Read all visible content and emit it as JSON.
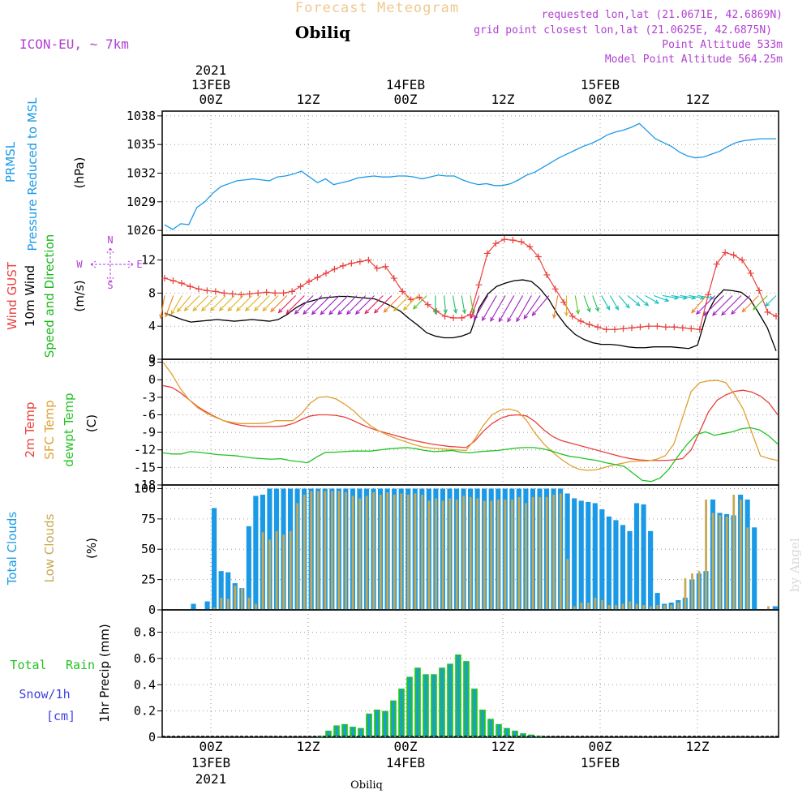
{
  "header": {
    "title": "Forecast Meteogram",
    "location": "Obiliq",
    "model": "ICON-EU, ~ 7km",
    "requested": "requested lon,lat (21.0671E, 42.6869N)",
    "gridpoint": "grid point closest lon,lat (21.0625E, 42.6875N)",
    "point_altitude": "Point Altitude 533m",
    "model_altitude": "Model Point Altitude 564.25m",
    "credit": "by Angel",
    "footer_location": "Obiliq"
  },
  "colors": {
    "pressure": "#1a9ae6",
    "gust": "#e8413c",
    "wind": "#000000",
    "windlabel": "#19b919",
    "temp2m": "#e8413c",
    "sfc": "#e0a030",
    "dewpt": "#22c322",
    "total_clouds": "#1a9ae6",
    "low_clouds": "#c8a850",
    "rain": "#22c322",
    "snow": "#4040e0",
    "header_purple": "#b040d0",
    "header_orange": "#f0c890"
  },
  "time_axis": {
    "top_ticks": [
      {
        "t": 6,
        "line1": "2021",
        "line2": "13FEB",
        "line3": "00Z"
      },
      {
        "t": 18,
        "line1": "",
        "line2": "",
        "line3": "12Z"
      },
      {
        "t": 30,
        "line1": "",
        "line2": "14FEB",
        "line3": "00Z"
      },
      {
        "t": 42,
        "line1": "",
        "line2": "",
        "line3": "12Z"
      },
      {
        "t": 54,
        "line1": "",
        "line2": "15FEB",
        "line3": "00Z"
      },
      {
        "t": 66,
        "line1": "",
        "line2": "",
        "line3": "12Z"
      }
    ],
    "bottom_ticks": [
      {
        "t": 6,
        "line1": "00Z",
        "line2": "13FEB",
        "line3": "2021"
      },
      {
        "t": 18,
        "line1": "12Z",
        "line2": "",
        "line3": ""
      },
      {
        "t": 30,
        "line1": "00Z",
        "line2": "14FEB",
        "line3": ""
      },
      {
        "t": 42,
        "line1": "12Z",
        "line2": "",
        "line3": ""
      },
      {
        "t": 54,
        "line1": "00Z",
        "line2": "15FEB",
        "line3": ""
      },
      {
        "t": 66,
        "line1": "12Z",
        "line2": "",
        "line3": ""
      }
    ]
  },
  "chart_data": [
    {
      "type": "line",
      "title": "PRMSL Pressure Reduced to MSL",
      "ylabel": "(hPa)",
      "label_lines": [
        "PRMSL",
        "Pressure Reduced to MSL"
      ],
      "yticks": [
        1026,
        1029,
        1032,
        1035,
        1038
      ],
      "ylim": [
        1025.5,
        1038.5
      ],
      "x_hours": [
        0,
        1,
        2,
        3,
        4,
        5,
        6,
        7,
        8,
        9,
        10,
        11,
        12,
        13,
        14,
        15,
        16,
        17,
        18,
        19,
        20,
        21,
        22,
        23,
        24,
        25,
        26,
        27,
        28,
        29,
        30,
        31,
        32,
        33,
        34,
        35,
        36,
        37,
        38,
        39,
        40,
        41,
        42,
        43,
        44,
        45,
        46,
        47,
        48,
        49,
        50,
        51,
        52,
        53,
        54,
        55,
        56,
        57,
        58,
        59,
        60,
        61,
        62,
        63,
        64,
        65,
        66,
        67,
        68,
        69,
        70,
        71,
        72,
        73,
        74,
        75,
        76
      ],
      "series": [
        {
          "name": "PRMSL",
          "values": [
            1026.6,
            1026.1,
            1026.7,
            1026.6,
            1028.4,
            1029.0,
            1029.9,
            1030.6,
            1030.9,
            1031.2,
            1031.3,
            1031.4,
            1031.3,
            1031.2,
            1031.6,
            1031.7,
            1031.9,
            1032.2,
            1031.6,
            1031.0,
            1031.4,
            1030.8,
            1031.0,
            1031.2,
            1031.5,
            1031.6,
            1031.7,
            1031.6,
            1031.6,
            1031.7,
            1031.7,
            1031.6,
            1031.4,
            1031.6,
            1031.8,
            1031.7,
            1031.7,
            1031.3,
            1031.0,
            1030.8,
            1030.9,
            1030.7,
            1030.7,
            1030.9,
            1031.3,
            1031.8,
            1032.1,
            1032.6,
            1033.1,
            1033.6,
            1034.0,
            1034.4,
            1034.8,
            1035.1,
            1035.5,
            1036.0,
            1036.3,
            1036.5,
            1036.8,
            1037.2,
            1036.4,
            1035.6,
            1035.2,
            1034.8,
            1034.2,
            1033.8,
            1033.6,
            1033.7,
            1034.0,
            1034.3,
            1034.8,
            1035.2,
            1035.4,
            1035.5,
            1035.6,
            1035.6,
            1035.6
          ]
        }
      ]
    },
    {
      "type": "line",
      "title": "Wind GUST / 10m Wind Speed and Direction",
      "ylabel": "(m/s)",
      "label_lines": [
        "Wind GUST",
        "10m Wind",
        "Speed and Direction"
      ],
      "compass": {
        "n": "N",
        "s": "S",
        "w": "W",
        "e": "E"
      },
      "yticks": [
        0,
        4,
        8,
        12
      ],
      "ylim": [
        0,
        15
      ],
      "series": [
        {
          "name": "Wind GUST",
          "values": [
            9.8,
            9.5,
            9.2,
            8.8,
            8.5,
            8.3,
            8.2,
            8.0,
            7.9,
            7.8,
            7.9,
            8.0,
            8.1,
            8.0,
            8.0,
            8.2,
            8.8,
            9.4,
            9.9,
            10.4,
            10.9,
            11.3,
            11.6,
            11.8,
            12.0,
            11.0,
            11.2,
            9.8,
            8.2,
            7.2,
            7.5,
            6.6,
            5.8,
            5.2,
            5.0,
            5.0,
            5.4,
            9.0,
            12.8,
            14.0,
            14.5,
            14.4,
            14.2,
            13.6,
            12.4,
            10.2,
            8.5,
            6.9,
            5.2,
            4.6,
            4.2,
            3.9,
            3.6,
            3.6,
            3.7,
            3.8,
            3.9,
            4.0,
            4.0,
            3.9,
            3.9,
            3.8,
            3.7,
            3.6,
            7.8,
            11.5,
            12.9,
            12.6,
            12.0,
            10.4,
            8.3,
            5.7,
            5.2
          ]
        },
        {
          "name": "10m Wind",
          "values": [
            5.6,
            5.2,
            4.8,
            4.5,
            4.6,
            4.7,
            4.8,
            4.7,
            4.6,
            4.7,
            4.8,
            4.7,
            4.6,
            4.8,
            5.4,
            6.2,
            6.8,
            7.1,
            7.4,
            7.5,
            7.6,
            7.6,
            7.5,
            7.4,
            7.3,
            6.9,
            6.4,
            5.8,
            4.9,
            4.1,
            3.2,
            2.8,
            2.6,
            2.6,
            2.8,
            3.2,
            6.2,
            7.9,
            8.8,
            9.2,
            9.5,
            9.6,
            9.4,
            8.5,
            7.2,
            5.4,
            4.0,
            3.0,
            2.4,
            2.0,
            1.8,
            1.8,
            1.7,
            1.5,
            1.4,
            1.4,
            1.5,
            1.5,
            1.5,
            1.4,
            1.3,
            1.7,
            5.3,
            7.3,
            8.4,
            8.3,
            8.1,
            7.3,
            5.6,
            3.8,
            1.0
          ]
        },
        {
          "name": "Direction (deg from)",
          "values": [
            10,
            20,
            30,
            40,
            45,
            45,
            45,
            45,
            45,
            45,
            45,
            45,
            45,
            45,
            45,
            45,
            45,
            45,
            45,
            45,
            45,
            45,
            45,
            45,
            45,
            45,
            45,
            45,
            45,
            45,
            45,
            0,
            355,
            350,
            350,
            350,
            20,
            30,
            30,
            30,
            30,
            30,
            30,
            35,
            40,
            10,
            0,
            350,
            340,
            340,
            330,
            330,
            320,
            310,
            310,
            300,
            290,
            280,
            280,
            280,
            280,
            280,
            40,
            45,
            45,
            45,
            45,
            45,
            45,
            45,
            45
          ]
        }
      ]
    },
    {
      "type": "line",
      "title": "2m Temp / SFC Temp / dewpt Temp",
      "ylabel": "(C)",
      "label_lines": [
        "2m Temp",
        "SFC Temp",
        "dewpt Temp"
      ],
      "yticks": [
        -18,
        -15,
        -12,
        -9,
        -6,
        -3,
        0,
        3
      ],
      "ylim": [
        -18,
        3.5
      ],
      "series": [
        {
          "name": "2m Temp",
          "values": [
            -1.0,
            -1.3,
            -2.2,
            -3.4,
            -4.6,
            -5.5,
            -6.3,
            -7.0,
            -7.5,
            -7.8,
            -8.0,
            -8.0,
            -8.0,
            -8.0,
            -7.9,
            -7.5,
            -6.8,
            -6.2,
            -6.0,
            -6.0,
            -6.1,
            -6.4,
            -7.0,
            -7.7,
            -8.3,
            -8.8,
            -9.2,
            -9.6,
            -10.0,
            -10.4,
            -10.7,
            -11.0,
            -11.2,
            -11.4,
            -11.5,
            -11.6,
            -10.5,
            -8.8,
            -7.5,
            -6.6,
            -6.1,
            -6.0,
            -6.2,
            -7.2,
            -8.6,
            -9.7,
            -10.4,
            -10.8,
            -11.2,
            -11.6,
            -12.0,
            -12.4,
            -12.8,
            -13.2,
            -13.5,
            -13.7,
            -13.8,
            -13.8,
            -13.8,
            -13.7,
            -13.5,
            -12.0,
            -8.8,
            -5.5,
            -3.5,
            -2.6,
            -2.0,
            -1.8,
            -2.1,
            -2.8,
            -4.0,
            -6.0
          ]
        },
        {
          "name": "SFC Temp",
          "values": [
            3.0,
            1.0,
            -1.5,
            -3.4,
            -4.8,
            -5.7,
            -6.4,
            -7.0,
            -7.3,
            -7.5,
            -7.5,
            -7.5,
            -7.4,
            -7.0,
            -7.0,
            -7.0,
            -5.8,
            -4.0,
            -3.0,
            -2.9,
            -3.3,
            -4.2,
            -5.3,
            -6.7,
            -7.9,
            -8.8,
            -9.5,
            -10.1,
            -10.6,
            -11.1,
            -11.5,
            -11.7,
            -11.8,
            -11.9,
            -12.0,
            -12.1,
            -10.2,
            -7.8,
            -6.0,
            -5.2,
            -5.0,
            -5.4,
            -7.0,
            -9.2,
            -11.0,
            -12.4,
            -13.6,
            -14.6,
            -15.3,
            -15.5,
            -15.4,
            -15.0,
            -14.6,
            -14.3,
            -14.0,
            -13.9,
            -13.9,
            -13.6,
            -13.0,
            -11.0,
            -6.5,
            -2.0,
            -0.5,
            -0.2,
            -0.1,
            -0.5,
            -2.5,
            -5.0,
            -9.0,
            -13.0,
            -13.5,
            -13.8
          ]
        },
        {
          "name": "dewpt Temp",
          "values": [
            -12.5,
            -12.7,
            -12.7,
            -12.3,
            -12.4,
            -12.6,
            -12.8,
            -12.9,
            -13.0,
            -13.2,
            -13.4,
            -13.5,
            -13.6,
            -13.5,
            -13.8,
            -14.0,
            -14.2,
            -13.2,
            -12.4,
            -12.4,
            -12.3,
            -12.2,
            -12.2,
            -12.2,
            -12.0,
            -11.8,
            -11.7,
            -11.6,
            -11.8,
            -12.1,
            -12.3,
            -12.2,
            -12.1,
            -12.4,
            -12.5,
            -12.3,
            -12.2,
            -12.1,
            -11.9,
            -11.7,
            -11.6,
            -11.6,
            -11.8,
            -12.2,
            -12.7,
            -13.1,
            -13.3,
            -13.6,
            -13.8,
            -14.2,
            -14.5,
            -14.8,
            -16.0,
            -17.2,
            -17.4,
            -16.8,
            -15.2,
            -13.0,
            -11.0,
            -9.4,
            -8.9,
            -9.5,
            -9.2,
            -8.9,
            -8.4,
            -8.2,
            -8.6,
            -9.6,
            -11.0
          ]
        }
      ]
    },
    {
      "type": "bar",
      "title": "Total Clouds / Low Clouds",
      "ylabel": "(%)",
      "label_lines": [
        "Total Clouds",
        "Low Clouds"
      ],
      "yticks": [
        0,
        25,
        50,
        75,
        100
      ],
      "ylim": [
        0,
        103
      ],
      "series": [
        {
          "name": "Total Clouds",
          "values": [
            0,
            0,
            0,
            0,
            5,
            0,
            7,
            84,
            32,
            31,
            22,
            18,
            69,
            94,
            95,
            100,
            100,
            100,
            100,
            100,
            100,
            100,
            100,
            100,
            100,
            100,
            100,
            100,
            100,
            100,
            100,
            100,
            100,
            100,
            100,
            100,
            100,
            100,
            100,
            100,
            100,
            100,
            100,
            100,
            100,
            100,
            100,
            100,
            100,
            100,
            100,
            100,
            100,
            100,
            100,
            100,
            100,
            100,
            96,
            92,
            90,
            89,
            88,
            83,
            77,
            74,
            70,
            65,
            88,
            87,
            65,
            14,
            5,
            6,
            8,
            10,
            25,
            30,
            32,
            91,
            80,
            79,
            78,
            95,
            91,
            68,
            0,
            0,
            3
          ]
        },
        {
          "name": "Low Clouds",
          "values": [
            0,
            0,
            0,
            0,
            0,
            0,
            0,
            2,
            10,
            9,
            20,
            18,
            10,
            5,
            64,
            58,
            65,
            62,
            65,
            88,
            95,
            98,
            98,
            98,
            98,
            98,
            97,
            94,
            92,
            94,
            97,
            95,
            97,
            95,
            96,
            95,
            96,
            95,
            90,
            92,
            90,
            92,
            91,
            94,
            93,
            92,
            90,
            90,
            91,
            91,
            91,
            93,
            88,
            93,
            93,
            93,
            95,
            96,
            42,
            3,
            6,
            6,
            10,
            8,
            4,
            4,
            5,
            7,
            5,
            4,
            3,
            4,
            4,
            4,
            6,
            26,
            30,
            32,
            91,
            80,
            78,
            77,
            95,
            91,
            68,
            0,
            0,
            3,
            0
          ]
        }
      ]
    },
    {
      "type": "bar",
      "title": "1hr Precip (mm)",
      "ylabel": "1hr Precip (mm)",
      "label_lines": [
        "Total",
        "Rain",
        "Snow/1h",
        "[cm]"
      ],
      "yticks": [
        0,
        0.2,
        0.4,
        0.6,
        0.8
      ],
      "ylim": [
        0,
        0.97
      ],
      "series": [
        {
          "name": "Total",
          "values": [
            0,
            0,
            0,
            0,
            0,
            0,
            0,
            0,
            0,
            0,
            0,
            0,
            0,
            0,
            0,
            0,
            0,
            0,
            0,
            0.01,
            0.05,
            0.09,
            0.1,
            0.08,
            0.07,
            0.18,
            0.21,
            0.2,
            0.28,
            0.37,
            0.46,
            0.53,
            0.48,
            0.48,
            0.53,
            0.56,
            0.63,
            0.58,
            0.37,
            0.21,
            0.14,
            0.1,
            0.07,
            0.05,
            0.03,
            0.02,
            0.01,
            0,
            0,
            0,
            0,
            0,
            0,
            0,
            0,
            0,
            0,
            0,
            0,
            0,
            0,
            0,
            0,
            0,
            0,
            0,
            0,
            0,
            0,
            0,
            0,
            0,
            0,
            0,
            0,
            0
          ]
        }
      ]
    }
  ]
}
